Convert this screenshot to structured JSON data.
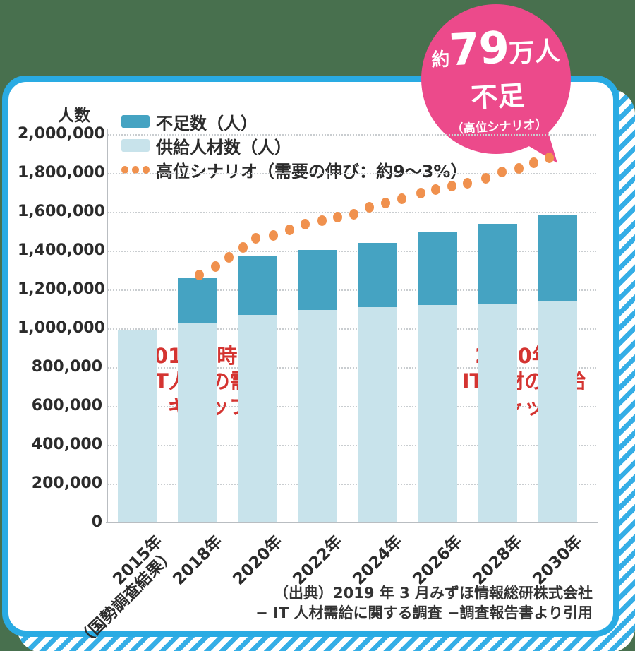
{
  "page": {
    "background_color": "#48704e",
    "card_border_color": "#29abe3",
    "stripe_color": "#35aee6"
  },
  "badge": {
    "prefix": "約",
    "number": "79",
    "unit": "万人",
    "line2": "不足",
    "line3": "（高位シナリオ）",
    "color": "#ec4a8b"
  },
  "chart_data": {
    "type": "bar",
    "subtype": "stacked-bars-with-dotted-scenario-line",
    "title": "",
    "y_axis_label": "人数",
    "xlabel": "",
    "ylabel": "人数",
    "ylim": [
      0,
      2000000
    ],
    "ytick_step": 200000,
    "ytick_labels": [
      "0",
      "200,000",
      "400,000",
      "600,000",
      "800,000",
      "1,000,000",
      "1,200,000",
      "1,400,000",
      "1,600,000",
      "1,800,000",
      "2,000,000"
    ],
    "grid": true,
    "legend_position": "top-left",
    "categories": [
      "2015年\n（国勢調査結果）",
      "2018年",
      "2020年",
      "2022年",
      "2024年",
      "2026年",
      "2028年",
      "2030年"
    ],
    "series": [
      {
        "name": "不足数（人）",
        "color": "#45a3c2",
        "values": [
          0,
          230000,
          300000,
          310000,
          330000,
          375000,
          413000,
          442000
        ]
      },
      {
        "name": "供給人材数（人）",
        "color": "#c8e3eb",
        "values": [
          990000,
          1030000,
          1070000,
          1095000,
          1110000,
          1120000,
          1125000,
          1140000
        ]
      }
    ],
    "scenario_line": {
      "name": "高位シナリオ（需要の伸び：約9～3%）",
      "color": "#f0914e",
      "style": "dotted",
      "points": [
        [
          2018.07,
          1273000
        ],
        [
          2018.59,
          1320000
        ],
        [
          2019.04,
          1367000
        ],
        [
          2019.51,
          1415000
        ],
        [
          2019.95,
          1462000
        ],
        [
          2020.52,
          1480000
        ],
        [
          2021.06,
          1509000
        ],
        [
          2021.58,
          1538000
        ],
        [
          2022.16,
          1553000
        ],
        [
          2022.66,
          1571000
        ],
        [
          2023.22,
          1589000
        ],
        [
          2023.74,
          1625000
        ],
        [
          2024.28,
          1647000
        ],
        [
          2024.8,
          1669000
        ],
        [
          2025.44,
          1695000
        ],
        [
          2025.95,
          1713000
        ],
        [
          2026.49,
          1731000
        ],
        [
          2027.01,
          1749000
        ],
        [
          2027.6,
          1771000
        ],
        [
          2028.16,
          1804000
        ],
        [
          2028.71,
          1825000
        ],
        [
          2029.22,
          1851000
        ],
        [
          2029.74,
          1880000
        ]
      ]
    }
  },
  "annotations": {
    "color": "#d43431",
    "left": {
      "lines": [
        "2018年時点の",
        "IT人材の需給",
        "ギャップ"
      ]
    },
    "right": {
      "lines": [
        "2030年の",
        "IT人材の需給",
        "ギャップ"
      ]
    }
  },
  "source": {
    "lines": [
      "（出典）2019 年 3 月みずほ情報総研株式会社",
      "− IT 人材需給に関する調査 −調査報告書より引用"
    ]
  }
}
